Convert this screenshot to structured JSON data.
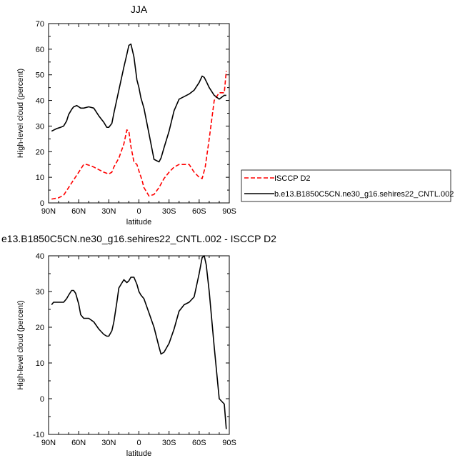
{
  "chart_data": [
    {
      "type": "line",
      "title": "JJA",
      "xlabel": "latitude",
      "ylabel": "High-level cloud (percent)",
      "xlim": [
        90,
        -90
      ],
      "ylim": [
        0,
        70
      ],
      "x_tick_labels": [
        "90N",
        "60N",
        "30N",
        "0",
        "30S",
        "60S",
        "90S"
      ],
      "x_tick_values": [
        90,
        60,
        30,
        0,
        -30,
        -60,
        -90
      ],
      "y_ticks": [
        0,
        10,
        20,
        30,
        40,
        50,
        60,
        70
      ],
      "legend_position": "right",
      "series": [
        {
          "name": "ISCCP D2",
          "color": "#ff0000",
          "dash": "dashed",
          "x": [
            87,
            80,
            75,
            70,
            65,
            60,
            55,
            52,
            48,
            45,
            40,
            35,
            30,
            27,
            25,
            20,
            15,
            12,
            10,
            8,
            5,
            2,
            0,
            -3,
            -5,
            -10,
            -15,
            -20,
            -25,
            -30,
            -35,
            -40,
            -45,
            -50,
            -55,
            -60,
            -63,
            -66,
            -70,
            -75,
            -80,
            -85,
            -87
          ],
          "y": [
            1.5,
            2,
            3,
            6,
            9,
            12,
            15,
            15,
            14.5,
            14,
            13,
            12,
            11.3,
            12,
            14,
            17.5,
            23,
            28.5,
            28,
            22,
            16,
            15,
            12.5,
            9,
            6,
            2.7,
            3.3,
            6,
            9.5,
            12,
            14,
            15,
            15,
            15,
            12,
            10,
            9.5,
            14,
            25,
            40,
            43,
            43,
            51.5
          ]
        },
        {
          "name": "b.e13.B1850C5CN.ne30_g16.sehires22_CNTL.002",
          "color": "#000000",
          "dash": "solid",
          "x": [
            87,
            82,
            78,
            75,
            72,
            70,
            67,
            65,
            62,
            58,
            55,
            50,
            45,
            40,
            35,
            32,
            30,
            27,
            25,
            20,
            15,
            12,
            10,
            8,
            5,
            2,
            0,
            -2,
            -5,
            -10,
            -15,
            -20,
            -22,
            -25,
            -30,
            -35,
            -40,
            -45,
            -50,
            -55,
            -60,
            -63,
            -65,
            -67,
            -70,
            -75,
            -80,
            -85,
            -87
          ],
          "y": [
            28,
            29,
            29.5,
            30,
            32,
            34.5,
            36.5,
            37.5,
            38,
            37,
            37,
            37.5,
            37,
            34,
            31.5,
            29.5,
            29.5,
            31,
            35,
            44,
            53,
            58,
            61.5,
            62,
            57,
            48,
            45,
            41,
            37,
            27,
            17,
            16,
            17.5,
            21.5,
            28,
            36,
            40.5,
            41.5,
            42.5,
            44,
            47,
            49.5,
            49,
            47.5,
            45,
            42,
            40.5,
            42,
            42
          ]
        }
      ]
    },
    {
      "type": "line",
      "title": "e13.B1850C5CN.ne30_g16.sehires22_CNTL.002 - ISCCP D2",
      "xlabel": "latitude",
      "ylabel": "High-level cloud (percent)",
      "xlim": [
        90,
        -90
      ],
      "ylim": [
        -10,
        40
      ],
      "x_tick_labels": [
        "90N",
        "60N",
        "30N",
        "0",
        "30S",
        "60S",
        "90S"
      ],
      "x_tick_values": [
        90,
        60,
        30,
        0,
        -30,
        -60,
        -90
      ],
      "y_ticks": [
        -10,
        0,
        10,
        20,
        30,
        40
      ],
      "series": [
        {
          "name": "",
          "color": "#000000",
          "dash": "solid",
          "x": [
            87,
            85,
            80,
            75,
            72,
            70,
            67,
            65,
            63,
            60,
            58,
            55,
            50,
            45,
            40,
            35,
            32,
            30,
            27,
            25,
            22,
            20,
            15,
            12,
            10,
            8,
            5,
            2,
            0,
            -2,
            -5,
            -10,
            -15,
            -20,
            -22,
            -25,
            -30,
            -35,
            -40,
            -45,
            -50,
            -55,
            -60,
            -63,
            -65,
            -67,
            -70,
            -75,
            -80,
            -85,
            -87
          ],
          "y": [
            26.3,
            27,
            27,
            27,
            28,
            29,
            30.3,
            30.3,
            29.5,
            26.5,
            23.5,
            22.5,
            22.5,
            21.5,
            19.5,
            18,
            17.5,
            17.5,
            19,
            21.5,
            27,
            31,
            33.3,
            32.5,
            33,
            34,
            34,
            32,
            30,
            29,
            28,
            24,
            20,
            14.5,
            12.5,
            13,
            15.5,
            19.5,
            24.5,
            26.3,
            27,
            28.5,
            35,
            39.5,
            40,
            37.5,
            30,
            14.5,
            0,
            -1.5,
            -8.5
          ]
        }
      ]
    }
  ]
}
